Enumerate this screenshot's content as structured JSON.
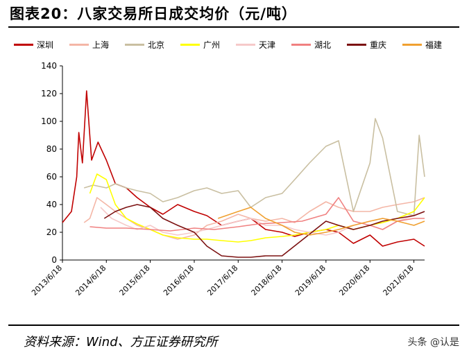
{
  "page": {
    "title": "图表20：八家交易所日成交均价（元/吨）",
    "source": "资料来源：Wind、方正证券研究所",
    "watermark": "头条 @认是"
  },
  "chart_data": {
    "type": "line",
    "title": "图表20：八家交易所日成交均价（元/吨）",
    "xlabel": "",
    "ylabel": "",
    "ylim": [
      0,
      140
    ],
    "yticks": [
      0,
      20,
      40,
      60,
      80,
      100,
      120,
      140
    ],
    "xlim": [
      "2013-06-18",
      "2021-09-15"
    ],
    "xticks": [
      "2013/6/18",
      "2014/6/18",
      "2015/6/18",
      "2016/6/18",
      "2017/6/18",
      "2018/6/18",
      "2019/6/18",
      "2020/6/18",
      "2021/6/18"
    ],
    "grid": false,
    "legend_position": "top",
    "series": [
      {
        "name": "深圳",
        "color": "#C00000",
        "points": [
          [
            "2013-06-18",
            27
          ],
          [
            "2013-09-01",
            35
          ],
          [
            "2013-10-15",
            60
          ],
          [
            "2013-11-01",
            92
          ],
          [
            "2013-12-01",
            70
          ],
          [
            "2014-01-05",
            122
          ],
          [
            "2014-02-15",
            72
          ],
          [
            "2014-04-10",
            85
          ],
          [
            "2014-06-18",
            72
          ],
          [
            "2014-09-01",
            55
          ],
          [
            "2014-12-01",
            52
          ],
          [
            "2015-03-01",
            45
          ],
          [
            "2015-06-18",
            38
          ],
          [
            "2015-10-01",
            33
          ],
          [
            "2016-02-01",
            40
          ],
          [
            "2016-06-18",
            35
          ],
          [
            "2016-10-01",
            32
          ],
          [
            "2017-02-01",
            25
          ],
          [
            "2017-06-18",
            28
          ],
          [
            "2017-10-01",
            30
          ],
          [
            "2018-02-01",
            22
          ],
          [
            "2018-06-18",
            20
          ],
          [
            "2018-10-01",
            17
          ],
          [
            "2019-02-01",
            20
          ],
          [
            "2019-06-18",
            22
          ],
          [
            "2019-10-01",
            20
          ],
          [
            "2020-02-01",
            12
          ],
          [
            "2020-06-18",
            18
          ],
          [
            "2020-10-01",
            10
          ],
          [
            "2021-02-01",
            13
          ],
          [
            "2021-06-18",
            15
          ],
          [
            "2021-09-15",
            10
          ]
        ]
      },
      {
        "name": "上海",
        "color": "#F4B6A6",
        "points": [
          [
            "2013-12-15",
            27
          ],
          [
            "2014-02-01",
            30
          ],
          [
            "2014-04-01",
            45
          ],
          [
            "2014-06-18",
            40
          ],
          [
            "2014-09-01",
            35
          ],
          [
            "2014-12-01",
            30
          ],
          [
            "2015-03-01",
            25
          ],
          [
            "2015-06-18",
            22
          ],
          [
            "2015-10-01",
            18
          ],
          [
            "2016-02-01",
            15
          ],
          [
            "2016-06-18",
            18
          ],
          [
            "2016-10-01",
            25
          ],
          [
            "2017-02-01",
            28
          ],
          [
            "2017-06-18",
            33
          ],
          [
            "2017-10-01",
            30
          ],
          [
            "2018-02-01",
            28
          ],
          [
            "2018-06-18",
            30
          ],
          [
            "2018-10-01",
            27
          ],
          [
            "2019-02-01",
            35
          ],
          [
            "2019-06-18",
            42
          ],
          [
            "2019-10-01",
            38
          ],
          [
            "2020-02-01",
            35
          ],
          [
            "2020-06-18",
            35
          ],
          [
            "2020-10-01",
            38
          ],
          [
            "2021-02-01",
            40
          ],
          [
            "2021-06-18",
            42
          ],
          [
            "2021-09-15",
            45
          ]
        ]
      },
      {
        "name": "北京",
        "color": "#C9BFA1",
        "points": [
          [
            "2013-12-15",
            52
          ],
          [
            "2014-03-01",
            54
          ],
          [
            "2014-06-18",
            52
          ],
          [
            "2014-09-01",
            55
          ],
          [
            "2014-12-01",
            52
          ],
          [
            "2015-03-01",
            50
          ],
          [
            "2015-06-18",
            48
          ],
          [
            "2015-10-01",
            42
          ],
          [
            "2016-02-01",
            45
          ],
          [
            "2016-06-18",
            50
          ],
          [
            "2016-10-01",
            52
          ],
          [
            "2017-02-01",
            48
          ],
          [
            "2017-06-18",
            50
          ],
          [
            "2017-10-01",
            38
          ],
          [
            "2018-02-01",
            45
          ],
          [
            "2018-06-18",
            48
          ],
          [
            "2018-10-01",
            58
          ],
          [
            "2019-02-01",
            70
          ],
          [
            "2019-06-18",
            82
          ],
          [
            "2019-10-01",
            86
          ],
          [
            "2020-02-01",
            35
          ],
          [
            "2020-06-18",
            70
          ],
          [
            "2020-08-01",
            102
          ],
          [
            "2020-10-01",
            88
          ],
          [
            "2021-02-01",
            35
          ],
          [
            "2021-06-18",
            32
          ],
          [
            "2021-08-01",
            90
          ],
          [
            "2021-09-15",
            60
          ]
        ]
      },
      {
        "name": "广州",
        "color": "#FFFF00",
        "points": [
          [
            "2014-02-01",
            48
          ],
          [
            "2014-04-01",
            62
          ],
          [
            "2014-06-18",
            58
          ],
          [
            "2014-09-01",
            40
          ],
          [
            "2014-12-01",
            30
          ],
          [
            "2015-03-01",
            26
          ],
          [
            "2015-06-18",
            22
          ],
          [
            "2015-10-01",
            18
          ],
          [
            "2016-02-01",
            16
          ],
          [
            "2016-06-18",
            15
          ],
          [
            "2016-10-01",
            15
          ],
          [
            "2017-02-01",
            14
          ],
          [
            "2017-06-18",
            13
          ],
          [
            "2017-10-01",
            14
          ],
          [
            "2018-02-01",
            16
          ],
          [
            "2018-06-18",
            17
          ],
          [
            "2018-10-01",
            18
          ],
          [
            "2019-02-01",
            20
          ],
          [
            "2019-06-18",
            22
          ],
          [
            "2019-10-01",
            25
          ],
          [
            "2020-02-01",
            22
          ],
          [
            "2020-06-18",
            25
          ],
          [
            "2020-10-01",
            27
          ],
          [
            "2021-02-01",
            30
          ],
          [
            "2021-06-18",
            35
          ],
          [
            "2021-09-15",
            45
          ]
        ]
      },
      {
        "name": "天津",
        "color": "#F6C9C9",
        "points": [
          [
            "2014-05-01",
            38
          ],
          [
            "2014-08-01",
            30
          ],
          [
            "2014-12-01",
            25
          ],
          [
            "2015-03-01",
            22
          ],
          [
            "2015-06-18",
            25
          ],
          [
            "2015-10-01",
            20
          ],
          [
            "2016-02-01",
            18
          ],
          [
            "2016-06-18",
            20
          ],
          [
            "2016-10-01",
            22
          ],
          [
            "2017-02-01",
            25
          ],
          [
            "2017-06-18",
            28
          ],
          [
            "2017-10-01",
            30
          ],
          [
            "2018-02-01",
            25
          ],
          [
            "2018-06-18",
            25
          ],
          [
            "2018-10-01",
            22
          ],
          [
            "2019-02-01",
            20
          ],
          [
            "2019-06-18",
            18
          ],
          [
            "2019-10-01",
            20
          ],
          [
            "2020-02-01",
            25
          ],
          [
            "2020-06-18",
            28
          ],
          [
            "2020-10-01",
            30
          ],
          [
            "2021-02-01",
            28
          ],
          [
            "2021-06-18",
            32
          ],
          [
            "2021-09-15",
            35
          ]
        ]
      },
      {
        "name": "湖北",
        "color": "#F08080",
        "points": [
          [
            "2014-02-01",
            24
          ],
          [
            "2014-06-18",
            23
          ],
          [
            "2014-12-01",
            23
          ],
          [
            "2015-06-18",
            22
          ],
          [
            "2015-12-01",
            21
          ],
          [
            "2016-06-18",
            23
          ],
          [
            "2016-12-01",
            22
          ],
          [
            "2017-06-18",
            24
          ],
          [
            "2017-12-01",
            26
          ],
          [
            "2018-06-18",
            27
          ],
          [
            "2018-12-01",
            28
          ],
          [
            "2019-06-18",
            33
          ],
          [
            "2019-10-01",
            45
          ],
          [
            "2020-02-01",
            28
          ],
          [
            "2020-06-18",
            25
          ],
          [
            "2020-10-01",
            22
          ],
          [
            "2021-02-01",
            28
          ],
          [
            "2021-06-18",
            30
          ],
          [
            "2021-09-15",
            30
          ]
        ]
      },
      {
        "name": "重庆",
        "color": "#7B1010",
        "points": [
          [
            "2014-06-01",
            30
          ],
          [
            "2014-09-01",
            35
          ],
          [
            "2014-12-01",
            38
          ],
          [
            "2015-03-01",
            40
          ],
          [
            "2015-06-18",
            38
          ],
          [
            "2015-10-01",
            30
          ],
          [
            "2016-02-01",
            25
          ],
          [
            "2016-06-18",
            20
          ],
          [
            "2016-10-01",
            10
          ],
          [
            "2017-02-01",
            3
          ],
          [
            "2017-06-18",
            2
          ],
          [
            "2017-10-01",
            2
          ],
          [
            "2018-02-01",
            3
          ],
          [
            "2018-06-18",
            3
          ],
          [
            "2019-06-18",
            28
          ],
          [
            "2019-10-01",
            25
          ],
          [
            "2020-02-01",
            22
          ],
          [
            "2020-06-18",
            25
          ],
          [
            "2020-10-01",
            28
          ],
          [
            "2021-02-01",
            30
          ],
          [
            "2021-06-18",
            32
          ],
          [
            "2021-09-15",
            35
          ]
        ]
      },
      {
        "name": "福建",
        "color": "#F0A030",
        "points": [
          [
            "2017-01-01",
            30
          ],
          [
            "2017-06-18",
            35
          ],
          [
            "2017-10-01",
            38
          ],
          [
            "2018-02-01",
            30
          ],
          [
            "2018-06-18",
            25
          ],
          [
            "2018-10-01",
            20
          ],
          [
            "2019-02-01",
            18
          ],
          [
            "2019-06-18",
            20
          ],
          [
            "2019-10-01",
            22
          ],
          [
            "2020-02-01",
            25
          ],
          [
            "2020-06-18",
            28
          ],
          [
            "2020-10-01",
            30
          ],
          [
            "2021-02-01",
            28
          ],
          [
            "2021-06-18",
            25
          ],
          [
            "2021-09-15",
            28
          ]
        ]
      }
    ]
  }
}
